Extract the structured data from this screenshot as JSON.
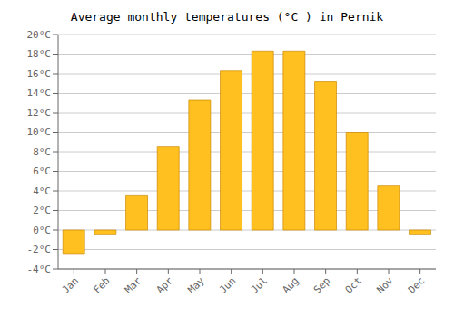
{
  "chart_data": {
    "type": "bar",
    "title": "Average monthly temperatures (°C ) in Pernik",
    "categories": [
      "Jan",
      "Feb",
      "Mar",
      "Apr",
      "May",
      "Jun",
      "Jul",
      "Aug",
      "Sep",
      "Oct",
      "Nov",
      "Dec"
    ],
    "values": [
      -2.5,
      -0.5,
      3.5,
      8.5,
      13.3,
      16.3,
      18.3,
      18.3,
      15.2,
      10.0,
      4.5,
      -0.5
    ],
    "color": "#FFC020",
    "ylim": [
      -4,
      20
    ],
    "yticks": [
      {
        "value": -4,
        "label": "-4°C"
      },
      {
        "value": -2,
        "label": "-2°C"
      },
      {
        "value": 0,
        "label": "0°C"
      },
      {
        "value": 2,
        "label": "2°C"
      },
      {
        "value": 4,
        "label": "4°C"
      },
      {
        "value": 6,
        "label": "6°C"
      },
      {
        "value": 8,
        "label": "8°C"
      },
      {
        "value": 10,
        "label": "10°C"
      },
      {
        "value": 12,
        "label": "12°C"
      },
      {
        "value": 14,
        "label": "14°C"
      },
      {
        "value": 16,
        "label": "16°C"
      },
      {
        "value": 18,
        "label": "18°C"
      },
      {
        "value": 20,
        "label": "20°C"
      }
    ],
    "grid": true
  }
}
